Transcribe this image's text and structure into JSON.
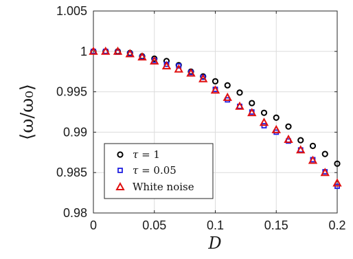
{
  "chart_data": {
    "type": "scatter",
    "xlabel": "D",
    "ylabel": "⟨ω/ω₀⟩",
    "xlim": [
      0,
      0.2
    ],
    "ylim": [
      0.98,
      1.005
    ],
    "xticks": [
      "0",
      "0.05",
      "0.1",
      "0.15",
      "0.2"
    ],
    "xtick_values": [
      0,
      0.05,
      0.1,
      0.15,
      0.2
    ],
    "yticks": [
      "0.98",
      "0.985",
      "0.99",
      "0.995",
      "1",
      "1.005"
    ],
    "ytick_values": [
      0.98,
      0.985,
      0.99,
      0.995,
      1.0,
      1.005
    ],
    "grid": true,
    "legend_position": "bottom-left",
    "series": [
      {
        "name": "τ = 1",
        "legend_symbol": "τ",
        "legend_value": "= 1",
        "marker": "circle",
        "color": "#000000",
        "x": [
          0,
          0.01,
          0.02,
          0.03,
          0.04,
          0.05,
          0.06,
          0.07,
          0.08,
          0.09,
          0.1,
          0.11,
          0.12,
          0.13,
          0.14,
          0.15,
          0.16,
          0.17,
          0.18,
          0.19,
          0.2
        ],
        "y": [
          1.0,
          1.0,
          1.0,
          0.9998,
          0.9994,
          0.9991,
          0.9988,
          0.9983,
          0.9975,
          0.9969,
          0.9963,
          0.9958,
          0.9949,
          0.9936,
          0.9924,
          0.9918,
          0.9907,
          0.989,
          0.9883,
          0.9873,
          0.9861
        ]
      },
      {
        "name": "τ = 0.05",
        "legend_symbol": "τ",
        "legend_value": "= 0.05",
        "marker": "square",
        "color": "#1f1fe0",
        "x": [
          0,
          0.01,
          0.02,
          0.03,
          0.04,
          0.05,
          0.06,
          0.07,
          0.08,
          0.09,
          0.1,
          0.11,
          0.12,
          0.13,
          0.14,
          0.15,
          0.16,
          0.17,
          0.18,
          0.19,
          0.2
        ],
        "y": [
          1.0,
          1.0,
          0.9999,
          0.9997,
          0.9993,
          0.9989,
          0.9984,
          0.9982,
          0.9974,
          0.9968,
          0.9953,
          0.994,
          0.9932,
          0.9925,
          0.9908,
          0.99,
          0.9889,
          0.9878,
          0.9866,
          0.9851,
          0.9833
        ]
      },
      {
        "name": "White noise",
        "legend_symbol": "",
        "legend_value": "White noise",
        "marker": "triangle",
        "color": "#e01010",
        "x": [
          0,
          0.01,
          0.02,
          0.03,
          0.04,
          0.05,
          0.06,
          0.07,
          0.08,
          0.09,
          0.1,
          0.11,
          0.12,
          0.13,
          0.14,
          0.15,
          0.16,
          0.17,
          0.18,
          0.19,
          0.2
        ],
        "y": [
          1.0,
          1.0,
          1.0,
          0.9997,
          0.9993,
          0.9988,
          0.9982,
          0.9978,
          0.9973,
          0.9966,
          0.9952,
          0.9943,
          0.9932,
          0.9924,
          0.9912,
          0.9903,
          0.9891,
          0.9878,
          0.9865,
          0.985,
          0.9837
        ]
      }
    ]
  }
}
